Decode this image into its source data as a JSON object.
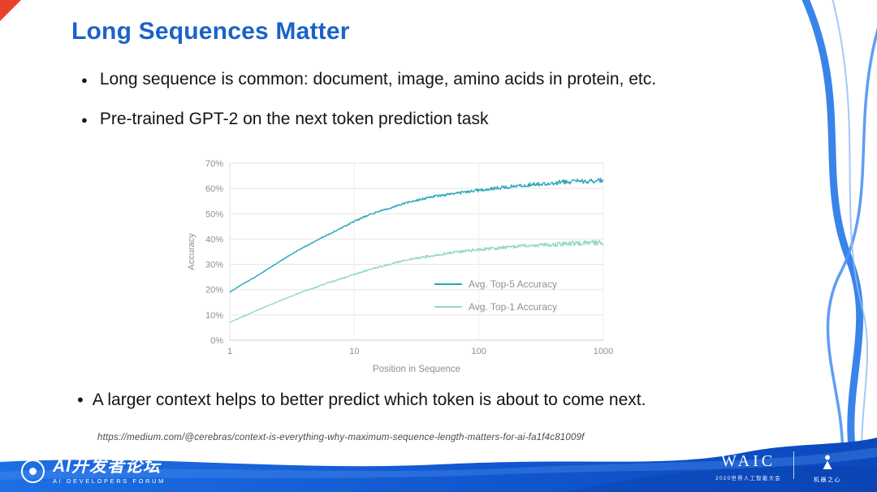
{
  "slide": {
    "title": "Long Sequences Matter",
    "bullet_glyph": "●",
    "sub_bullet_glyph": "•",
    "bullets": [
      "Long sequence is common: document, image, amino acids in protein, etc.",
      "Pre-trained GPT-2 on the next token prediction task"
    ],
    "takeaway": "A larger context helps to better predict which token is about to come next.",
    "source": "https://medium.com/@cerebras/context-is-everything-why-maximum-sequence-length-matters-for-ai-fa1f4c81009f"
  },
  "footer": {
    "left_logo_cn": "AI开发者论坛",
    "left_logo_en": "AI DEVELOPERS FORUM",
    "right_waic": "WAIC",
    "right_waic_sub": "2020世界人工智能大会",
    "right_brand": "机器之心"
  },
  "colors": {
    "title_blue": "#1B63C8",
    "footer_blue": "#1766DD",
    "ribbon_blue": "#2E7DE8",
    "corner_red": "#E8402A",
    "axis_gray": "#8f8f8f"
  },
  "chart_data": {
    "type": "line",
    "title": "",
    "xlabel": "Position in Sequence",
    "ylabel": "Accuracy",
    "x_scale": "log",
    "x_ticks": [
      1,
      10,
      100,
      1000
    ],
    "y_ticks_percent": [
      0,
      10,
      20,
      30,
      40,
      50,
      60,
      70
    ],
    "ylim": [
      0,
      70
    ],
    "grid": true,
    "legend_position": "center-right",
    "series": [
      {
        "name": "Avg. Top-5 Accuracy",
        "color": "#2BA6B8",
        "points": [
          [
            1,
            19
          ],
          [
            1.3,
            22.5
          ],
          [
            1.6,
            25
          ],
          [
            2,
            28
          ],
          [
            2.5,
            31
          ],
          [
            3,
            33.5
          ],
          [
            4,
            37
          ],
          [
            5,
            39.5
          ],
          [
            6,
            41.5
          ],
          [
            8,
            44.5
          ],
          [
            10,
            47
          ],
          [
            13,
            49.5
          ],
          [
            16,
            51
          ],
          [
            20,
            52.5
          ],
          [
            25,
            54
          ],
          [
            30,
            55
          ],
          [
            40,
            56.5
          ],
          [
            50,
            57.3
          ],
          [
            65,
            58
          ],
          [
            80,
            58.7
          ],
          [
            100,
            59.3
          ],
          [
            130,
            60
          ],
          [
            160,
            60.5
          ],
          [
            200,
            61
          ],
          [
            260,
            61.5
          ],
          [
            330,
            61.9
          ],
          [
            420,
            62.3
          ],
          [
            550,
            62.7
          ],
          [
            700,
            62.9
          ],
          [
            1000,
            63.2
          ]
        ]
      },
      {
        "name": "Avg. Top-1 Accuracy",
        "color": "#92D9BE",
        "points": [
          [
            1,
            7
          ],
          [
            1.3,
            9.5
          ],
          [
            1.6,
            11.5
          ],
          [
            2,
            13.5
          ],
          [
            2.5,
            15.5
          ],
          [
            3,
            17
          ],
          [
            4,
            19.5
          ],
          [
            5,
            21
          ],
          [
            6,
            22.5
          ],
          [
            8,
            24.5
          ],
          [
            10,
            26
          ],
          [
            13,
            27.8
          ],
          [
            16,
            29
          ],
          [
            20,
            30.3
          ],
          [
            25,
            31.5
          ],
          [
            30,
            32.3
          ],
          [
            40,
            33.3
          ],
          [
            50,
            34
          ],
          [
            65,
            34.8
          ],
          [
            80,
            35.3
          ],
          [
            100,
            35.8
          ],
          [
            130,
            36.3
          ],
          [
            160,
            36.7
          ],
          [
            200,
            37
          ],
          [
            260,
            37.4
          ],
          [
            330,
            37.7
          ],
          [
            420,
            38
          ],
          [
            550,
            38.2
          ],
          [
            700,
            38.4
          ],
          [
            1000,
            38.6
          ]
        ]
      }
    ]
  }
}
